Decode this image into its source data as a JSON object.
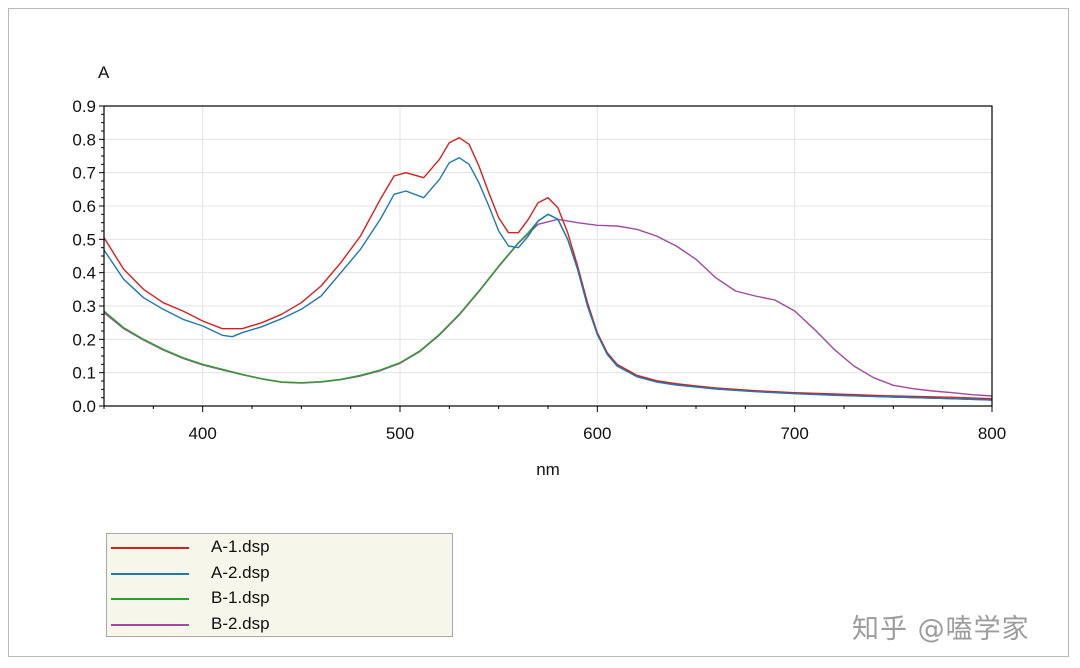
{
  "chart_data": {
    "type": "line",
    "title": "",
    "xlabel": "nm",
    "ylabel": "A",
    "xlim": [
      350,
      800
    ],
    "ylim": [
      0.0,
      0.9
    ],
    "x_ticks": [
      400,
      500,
      600,
      700,
      800
    ],
    "x_tick_labels": [
      "400",
      "500",
      "600",
      "700",
      "800"
    ],
    "y_ticks": [
      0.0,
      0.1,
      0.2,
      0.3,
      0.4,
      0.5,
      0.6,
      0.7,
      0.8,
      0.9
    ],
    "y_tick_labels": [
      "0.0",
      "0.1",
      "0.2",
      "0.3",
      "0.4",
      "0.5",
      "0.6",
      "0.7",
      "0.8",
      "0.9"
    ],
    "grid": true,
    "legend_position": "bottom-left",
    "series": [
      {
        "name": "A-1.dsp",
        "color": "#d42020",
        "points": [
          [
            350,
            0.505
          ],
          [
            360,
            0.41
          ],
          [
            370,
            0.35
          ],
          [
            380,
            0.31
          ],
          [
            390,
            0.285
          ],
          [
            400,
            0.255
          ],
          [
            410,
            0.232
          ],
          [
            420,
            0.232
          ],
          [
            430,
            0.25
          ],
          [
            440,
            0.275
          ],
          [
            450,
            0.31
          ],
          [
            460,
            0.36
          ],
          [
            470,
            0.43
          ],
          [
            480,
            0.51
          ],
          [
            490,
            0.62
          ],
          [
            497,
            0.69
          ],
          [
            503,
            0.7
          ],
          [
            512,
            0.685
          ],
          [
            520,
            0.74
          ],
          [
            525,
            0.79
          ],
          [
            530,
            0.805
          ],
          [
            535,
            0.785
          ],
          [
            540,
            0.72
          ],
          [
            545,
            0.64
          ],
          [
            550,
            0.565
          ],
          [
            555,
            0.52
          ],
          [
            560,
            0.52
          ],
          [
            565,
            0.56
          ],
          [
            570,
            0.61
          ],
          [
            575,
            0.625
          ],
          [
            580,
            0.595
          ],
          [
            585,
            0.52
          ],
          [
            590,
            0.42
          ],
          [
            595,
            0.31
          ],
          [
            600,
            0.22
          ],
          [
            605,
            0.16
          ],
          [
            610,
            0.125
          ],
          [
            620,
            0.092
          ],
          [
            630,
            0.076
          ],
          [
            640,
            0.067
          ],
          [
            650,
            0.06
          ],
          [
            660,
            0.054
          ],
          [
            680,
            0.046
          ],
          [
            700,
            0.04
          ],
          [
            720,
            0.036
          ],
          [
            750,
            0.03
          ],
          [
            780,
            0.026
          ],
          [
            800,
            0.022
          ]
        ]
      },
      {
        "name": "A-2.dsp",
        "color": "#1f78b4",
        "points": [
          [
            350,
            0.468
          ],
          [
            360,
            0.38
          ],
          [
            370,
            0.325
          ],
          [
            380,
            0.29
          ],
          [
            390,
            0.26
          ],
          [
            400,
            0.24
          ],
          [
            410,
            0.212
          ],
          [
            415,
            0.208
          ],
          [
            420,
            0.22
          ],
          [
            430,
            0.238
          ],
          [
            440,
            0.262
          ],
          [
            450,
            0.29
          ],
          [
            460,
            0.33
          ],
          [
            470,
            0.4
          ],
          [
            480,
            0.47
          ],
          [
            490,
            0.56
          ],
          [
            497,
            0.635
          ],
          [
            503,
            0.645
          ],
          [
            512,
            0.625
          ],
          [
            520,
            0.68
          ],
          [
            525,
            0.73
          ],
          [
            530,
            0.745
          ],
          [
            535,
            0.725
          ],
          [
            540,
            0.67
          ],
          [
            545,
            0.6
          ],
          [
            550,
            0.525
          ],
          [
            555,
            0.48
          ],
          [
            560,
            0.475
          ],
          [
            565,
            0.51
          ],
          [
            570,
            0.555
          ],
          [
            575,
            0.575
          ],
          [
            580,
            0.56
          ],
          [
            585,
            0.5
          ],
          [
            590,
            0.41
          ],
          [
            595,
            0.3
          ],
          [
            600,
            0.215
          ],
          [
            605,
            0.155
          ],
          [
            610,
            0.12
          ],
          [
            620,
            0.088
          ],
          [
            630,
            0.072
          ],
          [
            640,
            0.063
          ],
          [
            650,
            0.057
          ],
          [
            660,
            0.051
          ],
          [
            680,
            0.043
          ],
          [
            700,
            0.037
          ],
          [
            720,
            0.032
          ],
          [
            750,
            0.027
          ],
          [
            780,
            0.022
          ],
          [
            800,
            0.018
          ]
        ]
      },
      {
        "name": "B-1.dsp",
        "color": "#2ca02c",
        "points": [
          [
            350,
            0.285
          ],
          [
            360,
            0.235
          ],
          [
            370,
            0.2
          ],
          [
            380,
            0.17
          ],
          [
            390,
            0.145
          ],
          [
            400,
            0.125
          ],
          [
            410,
            0.11
          ],
          [
            420,
            0.095
          ],
          [
            430,
            0.082
          ],
          [
            440,
            0.072
          ],
          [
            450,
            0.07
          ],
          [
            460,
            0.073
          ],
          [
            470,
            0.08
          ],
          [
            480,
            0.092
          ],
          [
            490,
            0.108
          ],
          [
            500,
            0.13
          ],
          [
            510,
            0.165
          ],
          [
            520,
            0.215
          ],
          [
            530,
            0.275
          ],
          [
            540,
            0.345
          ],
          [
            550,
            0.42
          ],
          [
            560,
            0.49
          ],
          [
            565,
            0.52
          ],
          [
            570,
            0.555
          ],
          [
            575,
            0.575
          ],
          [
            580,
            0.56
          ],
          [
            585,
            0.5
          ],
          [
            590,
            0.41
          ],
          [
            595,
            0.3
          ],
          [
            600,
            0.215
          ],
          [
            605,
            0.155
          ],
          [
            610,
            0.12
          ],
          [
            620,
            0.09
          ],
          [
            630,
            0.074
          ],
          [
            640,
            0.065
          ],
          [
            650,
            0.058
          ],
          [
            660,
            0.052
          ],
          [
            680,
            0.044
          ],
          [
            700,
            0.038
          ],
          [
            720,
            0.033
          ],
          [
            750,
            0.027
          ],
          [
            780,
            0.022
          ],
          [
            800,
            0.018
          ]
        ]
      },
      {
        "name": "B-2.dsp",
        "color": "#a049a0",
        "points": [
          [
            350,
            0.28
          ],
          [
            360,
            0.232
          ],
          [
            370,
            0.198
          ],
          [
            380,
            0.168
          ],
          [
            390,
            0.143
          ],
          [
            400,
            0.123
          ],
          [
            410,
            0.108
          ],
          [
            420,
            0.094
          ],
          [
            430,
            0.081
          ],
          [
            440,
            0.071
          ],
          [
            450,
            0.069
          ],
          [
            460,
            0.072
          ],
          [
            470,
            0.079
          ],
          [
            480,
            0.09
          ],
          [
            490,
            0.106
          ],
          [
            500,
            0.128
          ],
          [
            510,
            0.163
          ],
          [
            520,
            0.213
          ],
          [
            530,
            0.273
          ],
          [
            540,
            0.343
          ],
          [
            550,
            0.418
          ],
          [
            560,
            0.488
          ],
          [
            570,
            0.545
          ],
          [
            580,
            0.56
          ],
          [
            590,
            0.55
          ],
          [
            600,
            0.542
          ],
          [
            610,
            0.54
          ],
          [
            620,
            0.53
          ],
          [
            630,
            0.51
          ],
          [
            640,
            0.48
          ],
          [
            650,
            0.44
          ],
          [
            660,
            0.385
          ],
          [
            670,
            0.345
          ],
          [
            680,
            0.33
          ],
          [
            690,
            0.318
          ],
          [
            700,
            0.285
          ],
          [
            710,
            0.23
          ],
          [
            720,
            0.17
          ],
          [
            730,
            0.12
          ],
          [
            740,
            0.085
          ],
          [
            750,
            0.062
          ],
          [
            760,
            0.052
          ],
          [
            770,
            0.045
          ],
          [
            780,
            0.04
          ],
          [
            790,
            0.034
          ],
          [
            800,
            0.03
          ]
        ]
      }
    ]
  },
  "watermark": "知乎 @嗑学家"
}
